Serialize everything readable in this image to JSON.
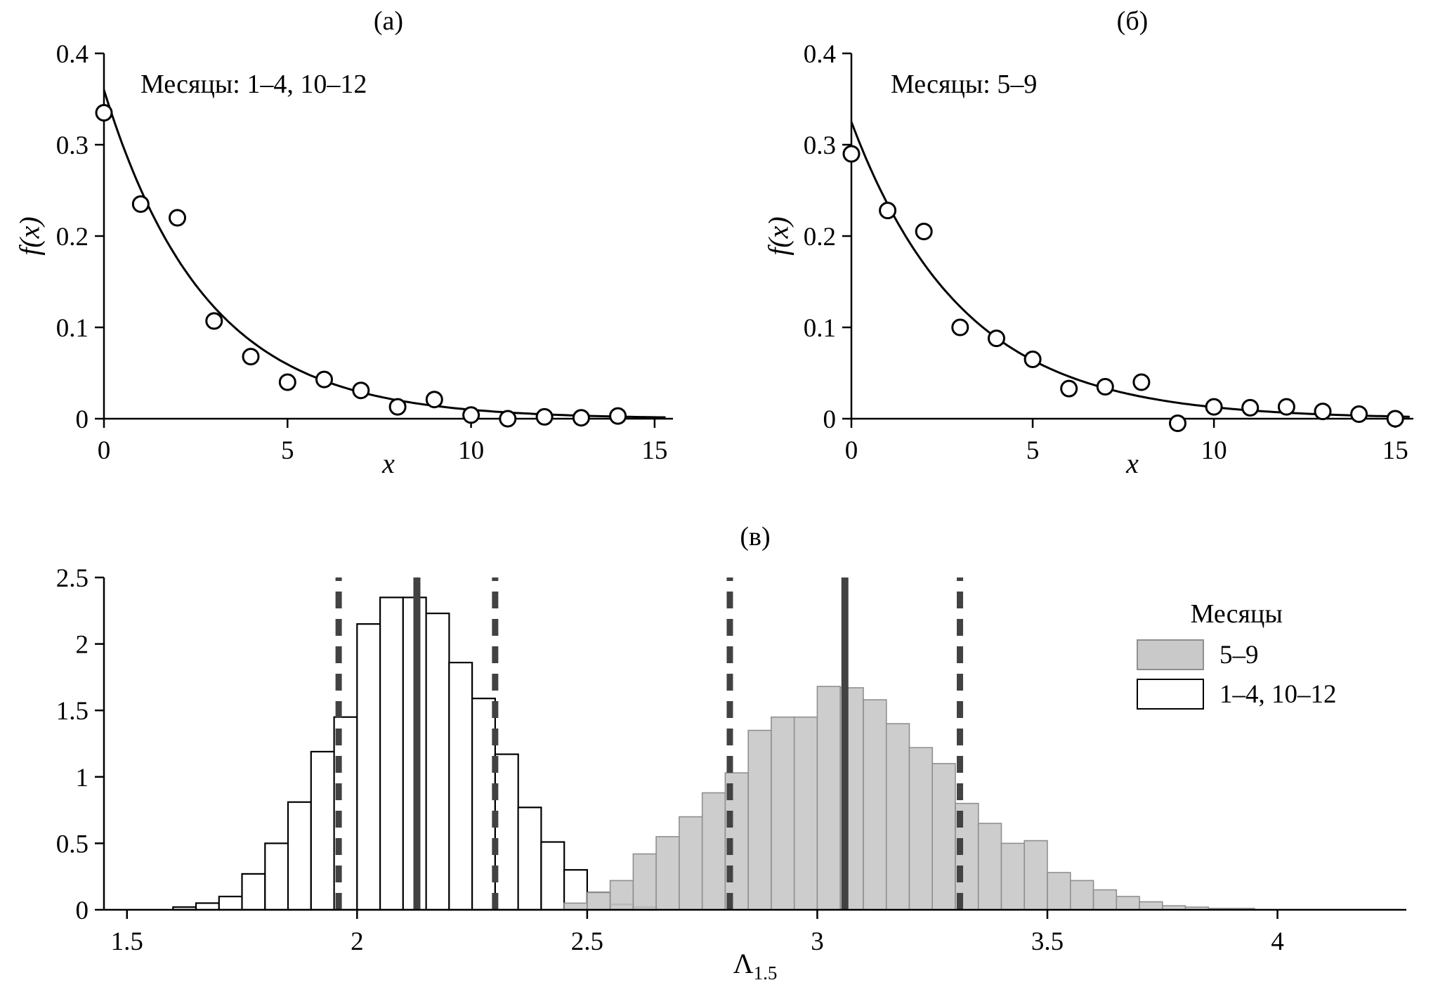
{
  "figure": {
    "background": "#ffffff",
    "ink": "#000000",
    "hist_gray": "#c9c9c9",
    "hist_gray_stroke": "#8f8f8f",
    "vline_color": "#424242"
  },
  "chart_data": [
    {
      "id": "a",
      "type": "scatter",
      "panel_tag": "(а)",
      "annotation": "Месяцы: 1–4, 10–12",
      "xlabel": "x",
      "ylabel": "f(x)",
      "xlim": [
        0,
        15.5
      ],
      "ylim": [
        0,
        0.4
      ],
      "xticks": [
        0,
        5,
        10,
        15
      ],
      "xtick_labels": [
        "0",
        "5",
        "10",
        "15"
      ],
      "yticks": [
        0,
        0.1,
        0.2,
        0.3,
        0.4
      ],
      "ytick_labels": [
        "0",
        "0.1",
        "0.2",
        "0.3",
        "0.4"
      ],
      "points_x": [
        0,
        1,
        2,
        3,
        4,
        5,
        6,
        7,
        8,
        9,
        10,
        11,
        12,
        13,
        14
      ],
      "points_y": [
        0.335,
        0.235,
        0.22,
        0.107,
        0.068,
        0.04,
        0.043,
        0.031,
        0.013,
        0.021,
        0.004,
        0.0,
        0.002,
        0.001,
        0.003
      ],
      "fit_curve": {
        "form": "a*exp(-b*x)",
        "a": 0.36,
        "b": 0.36,
        "x_range": [
          0,
          15.3
        ]
      },
      "grid": false
    },
    {
      "id": "b",
      "type": "scatter",
      "panel_tag": "(б)",
      "annotation": "Месяцы: 5–9",
      "xlabel": "x",
      "ylabel": "f(x)",
      "xlim": [
        0,
        15.5
      ],
      "ylim": [
        0,
        0.4
      ],
      "xticks": [
        0,
        5,
        10,
        15
      ],
      "xtick_labels": [
        "0",
        "5",
        "10",
        "15"
      ],
      "yticks": [
        0,
        0.1,
        0.2,
        0.3,
        0.4
      ],
      "ytick_labels": [
        "0",
        "0.1",
        "0.2",
        "0.3",
        "0.4"
      ],
      "points_x": [
        0,
        1,
        2,
        3,
        4,
        5,
        6,
        7,
        8,
        9,
        10,
        11,
        12,
        13,
        14,
        15
      ],
      "points_y": [
        0.29,
        0.228,
        0.205,
        0.1,
        0.088,
        0.065,
        0.033,
        0.035,
        0.04,
        -0.005,
        0.013,
        0.012,
        0.013,
        0.008,
        0.005,
        0.0
      ],
      "fit_curve": {
        "form": "a*exp(-b*x)",
        "a": 0.325,
        "b": 0.325,
        "x_range": [
          0,
          15.4
        ]
      },
      "grid": false
    },
    {
      "id": "v",
      "type": "histogram",
      "panel_tag": "(в)",
      "xlabel_base": "Λ",
      "xlabel_sub": "1.5",
      "xlim": [
        1.45,
        4.28
      ],
      "ylim": [
        0,
        2.5
      ],
      "xticks": [
        1.5,
        2,
        2.5,
        3,
        3.5,
        4
      ],
      "xtick_labels": [
        "1.5",
        "2",
        "2.5",
        "3",
        "3.5",
        "4"
      ],
      "yticks": [
        0,
        0.5,
        1,
        1.5,
        2,
        2.5
      ],
      "ytick_labels": [
        "0",
        "0.5",
        "1",
        "1.5",
        "2",
        "2.5"
      ],
      "bin_width": 0.05,
      "series": [
        {
          "name": "1–4, 10–12",
          "fill": "#ffffff",
          "stroke": "#000000",
          "bins_start": 1.6,
          "heights": [
            0.02,
            0.05,
            0.1,
            0.27,
            0.5,
            0.81,
            1.19,
            1.45,
            2.15,
            2.35,
            2.35,
            2.23,
            1.86,
            1.59,
            1.17,
            0.77,
            0.51,
            0.3,
            0.13,
            0.04,
            0.02
          ]
        },
        {
          "name": "5–9",
          "fill": "#c9c9c9",
          "stroke": "#8f8f8f",
          "bins_start": 2.45,
          "heights": [
            0.05,
            0.13,
            0.22,
            0.42,
            0.55,
            0.7,
            0.88,
            1.03,
            1.35,
            1.45,
            1.45,
            1.68,
            1.67,
            1.58,
            1.4,
            1.22,
            1.1,
            0.8,
            0.65,
            0.5,
            0.52,
            0.28,
            0.22,
            0.15,
            0.1,
            0.06,
            0.03,
            0.02,
            0.01,
            0.01
          ]
        }
      ],
      "vlines_solid": [
        2.13,
        3.06
      ],
      "vlines_dashed": [
        1.96,
        2.3,
        2.81,
        3.31
      ],
      "legend": {
        "title": "Месяцы",
        "items": [
          {
            "label": "5–9",
            "fill": "#c9c9c9",
            "stroke": "#8f8f8f"
          },
          {
            "label": "1–4, 10–12",
            "fill": "#ffffff",
            "stroke": "#000000"
          }
        ],
        "position": "upper right"
      }
    }
  ]
}
